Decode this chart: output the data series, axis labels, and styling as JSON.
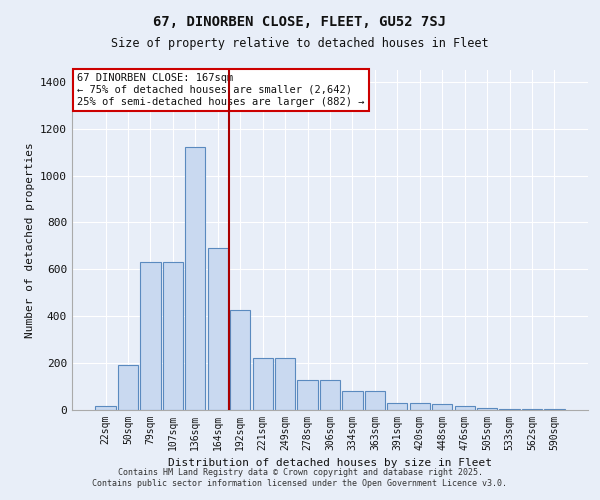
{
  "title1": "67, DINORBEN CLOSE, FLEET, GU52 7SJ",
  "title2": "Size of property relative to detached houses in Fleet",
  "xlabel": "Distribution of detached houses by size in Fleet",
  "ylabel": "Number of detached properties",
  "bar_labels": [
    "22sqm",
    "50sqm",
    "79sqm",
    "107sqm",
    "136sqm",
    "164sqm",
    "192sqm",
    "221sqm",
    "249sqm",
    "278sqm",
    "306sqm",
    "334sqm",
    "363sqm",
    "391sqm",
    "420sqm",
    "448sqm",
    "476sqm",
    "505sqm",
    "533sqm",
    "562sqm",
    "590sqm"
  ],
  "bar_values": [
    15,
    190,
    630,
    630,
    1120,
    690,
    425,
    220,
    220,
    130,
    130,
    80,
    80,
    30,
    30,
    25,
    15,
    10,
    5,
    5,
    5
  ],
  "bar_color": "#c9d9f0",
  "bar_edge_color": "#5a8abf",
  "vline_x": 5.5,
  "vline_color": "#aa0000",
  "annotation_text": "67 DINORBEN CLOSE: 167sqm\n← 75% of detached houses are smaller (2,642)\n25% of semi-detached houses are larger (882) →",
  "annotation_box_color": "#ffffff",
  "annotation_box_edge": "#cc0000",
  "background_color": "#e8eef8",
  "grid_color": "#ffffff",
  "ylim": [
    0,
    1450
  ],
  "yticks": [
    0,
    200,
    400,
    600,
    800,
    1000,
    1200,
    1400
  ],
  "footer1": "Contains HM Land Registry data © Crown copyright and database right 2025.",
  "footer2": "Contains public sector information licensed under the Open Government Licence v3.0."
}
